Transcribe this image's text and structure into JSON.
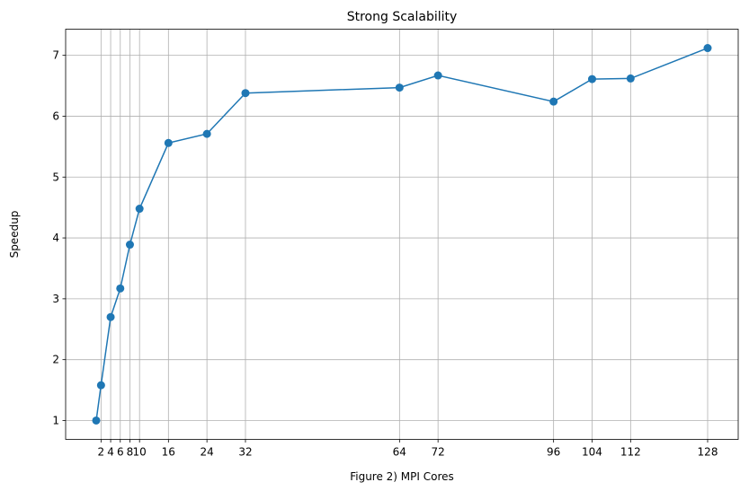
{
  "chart_data": {
    "type": "line",
    "title": "Strong Scalability",
    "xlabel": "Figure 2)  MPI Cores",
    "ylabel": "Speedup",
    "x": [
      1,
      2,
      4,
      6,
      8,
      10,
      16,
      24,
      32,
      64,
      72,
      96,
      104,
      112,
      128
    ],
    "series": [
      {
        "values": [
          1.0,
          1.58,
          2.7,
          3.17,
          3.89,
          4.48,
          5.56,
          5.71,
          6.38,
          6.47,
          6.67,
          6.24,
          6.61,
          6.62,
          7.12
        ],
        "color": "#1f77b4",
        "marker": "circle"
      }
    ],
    "xticks": [
      2,
      4,
      6,
      8,
      10,
      16,
      24,
      32,
      64,
      72,
      96,
      104,
      112,
      128
    ],
    "yticks": [
      1,
      2,
      3,
      4,
      5,
      6,
      7
    ],
    "xlim": [
      -5.35,
      134.35
    ],
    "ylim": [
      0.69,
      7.43
    ],
    "grid": true
  }
}
